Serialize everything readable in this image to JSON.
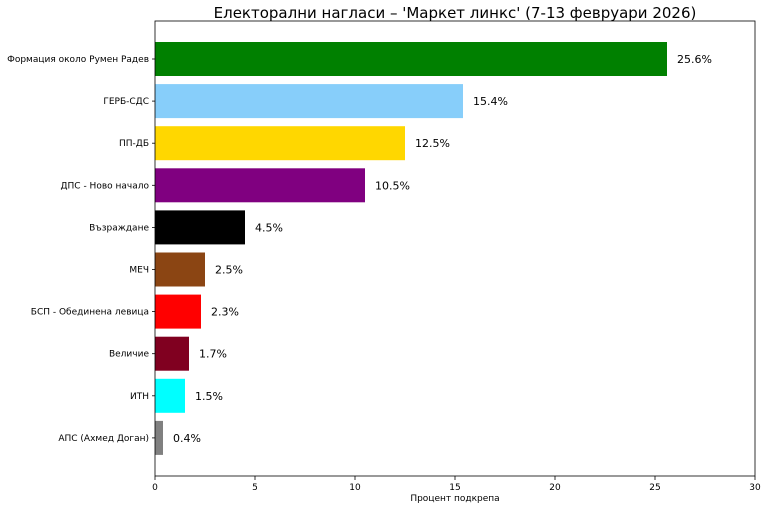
{
  "chart_data": {
    "type": "bar",
    "orientation": "horizontal",
    "title": "Електорални нагласи – 'Маркет линкс' (7-13 февруари 2026)",
    "xlabel": "Процент подкрепа",
    "ylabel": "",
    "xlim": [
      0,
      30
    ],
    "xticks": [
      0,
      5,
      10,
      15,
      20,
      25,
      30
    ],
    "grid": false,
    "categories": [
      "Формация около Румен Радев",
      "ГЕРБ-СДС",
      "ПП-ДБ",
      "ДПС - Ново начало",
      "Възраждане",
      "МЕЧ",
      "БСП - Обединена левица",
      "Величие",
      "ИТН",
      "АПС (Ахмед Доган)"
    ],
    "values": [
      25.6,
      15.4,
      12.5,
      10.5,
      4.5,
      2.5,
      2.3,
      1.7,
      1.5,
      0.4
    ],
    "value_labels": [
      "25.6%",
      "15.4%",
      "12.5%",
      "10.5%",
      "4.5%",
      "2.5%",
      "2.3%",
      "1.7%",
      "1.5%",
      "0.4%"
    ],
    "colors": [
      "#008000",
      "#87cefa",
      "#ffd700",
      "#800080",
      "#000000",
      "#8b4513",
      "#ff0000",
      "#800020",
      "#00ffff",
      "#808080"
    ]
  }
}
